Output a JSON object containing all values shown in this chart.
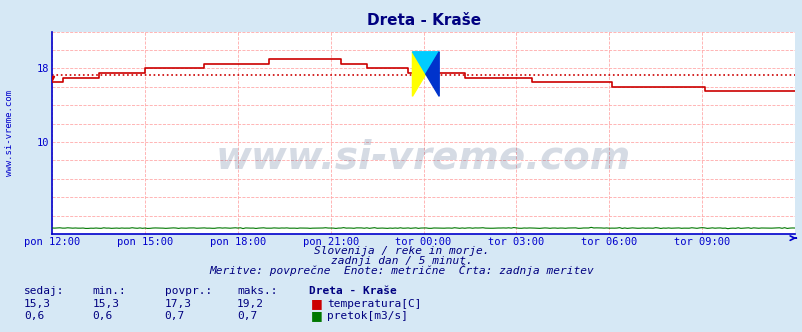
{
  "title": "Dreta - Kraše",
  "title_color": "#000080",
  "bg_color": "#d6e8f5",
  "plot_bg_color": "#ffffff",
  "grid_color": "#ffaaaa",
  "axis_color": "#0000cc",
  "x_tick_labels": [
    "pon 12:00",
    "pon 15:00",
    "pon 18:00",
    "pon 21:00",
    "tor 00:00",
    "tor 03:00",
    "tor 06:00",
    "tor 09:00"
  ],
  "x_tick_positions": [
    0,
    36,
    72,
    108,
    144,
    180,
    216,
    252
  ],
  "n_points": 289,
  "ylim_min": 0,
  "ylim_max": 22,
  "ytick_vals": [
    10,
    18
  ],
  "temp_color": "#cc0000",
  "flow_color": "#007700",
  "avg_line_color": "#cc0000",
  "avg_temp": 17.3,
  "temp_start": 16.5,
  "temp_peak": 19.2,
  "temp_peak_idx": 108,
  "temp_end": 15.3,
  "flow_base": 0.65,
  "watermark_text": "www.si-vreme.com",
  "watermark_color": "#1a3a6e",
  "watermark_alpha": 0.18,
  "watermark_fontsize": 28,
  "subtitle1": "Slovenija / reke in morje.",
  "subtitle2": "zadnji dan / 5 minut.",
  "subtitle3": "Meritve: povprečne  Enote: metrične  Črta: zadnja meritev",
  "subtitle_color": "#000080",
  "footer_color": "#000080",
  "sedaj_label": "sedaj:",
  "min_label": "min.:",
  "povpr_label": "povpr.:",
  "maks_label": "maks.:",
  "station_label": "Dreta - Kraše",
  "temp_label": "temperatura[C]",
  "flow_label": "pretok[m3/s]",
  "temp_sedaj": "15,3",
  "temp_min": "15,3",
  "temp_povpr": "17,3",
  "temp_maks": "19,2",
  "flow_sedaj": "0,6",
  "flow_min": "0,6",
  "flow_povpr": "0,7",
  "flow_maks": "0,7",
  "logo_yellow": "#ffff00",
  "logo_blue": "#0033cc",
  "logo_cyan": "#00ccff"
}
